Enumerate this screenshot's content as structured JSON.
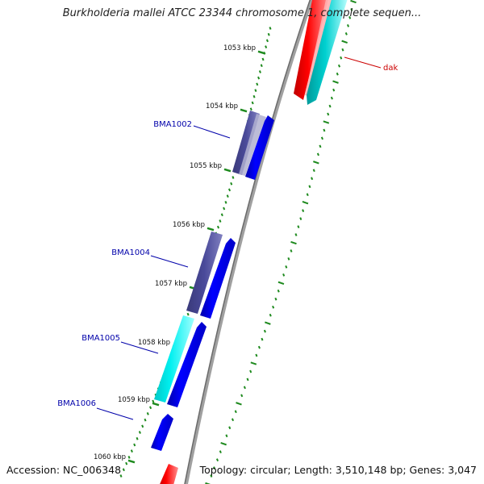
{
  "title": "Burkholderia mallei ATCC 23344 chromosome 1, complete sequen...",
  "footer": {
    "accession": "Accession: NC_006348",
    "summary": "Topology: circular; Length: 3,510,148 bp; Genes: 3,047"
  },
  "colors": {
    "backbone": "#7a7a7a",
    "tick": "#1e8a1e",
    "forward_gene": "#0000ee",
    "reverse_gene": "#2e2e8a",
    "cyan_gene": "#00e0e0",
    "red_gene": "#ee0000",
    "label_blue": "#0000aa",
    "label_red": "#cc0000"
  },
  "ticks": [
    {
      "label": "1053 kbp"
    },
    {
      "label": "1054 kbp"
    },
    {
      "label": "1055 kbp"
    },
    {
      "label": "1056 kbp"
    },
    {
      "label": "1057 kbp"
    },
    {
      "label": "1058 kbp"
    },
    {
      "label": "1059 kbp"
    },
    {
      "label": "1060 kbp"
    }
  ],
  "gene_labels": [
    {
      "text": "dak",
      "color": "label_red"
    },
    {
      "text": "BMA1002",
      "color": "label_blue"
    },
    {
      "text": "BMA1004",
      "color": "label_blue"
    },
    {
      "text": "BMA1005",
      "color": "label_blue"
    },
    {
      "text": "BMA1006",
      "color": "label_blue"
    }
  ]
}
